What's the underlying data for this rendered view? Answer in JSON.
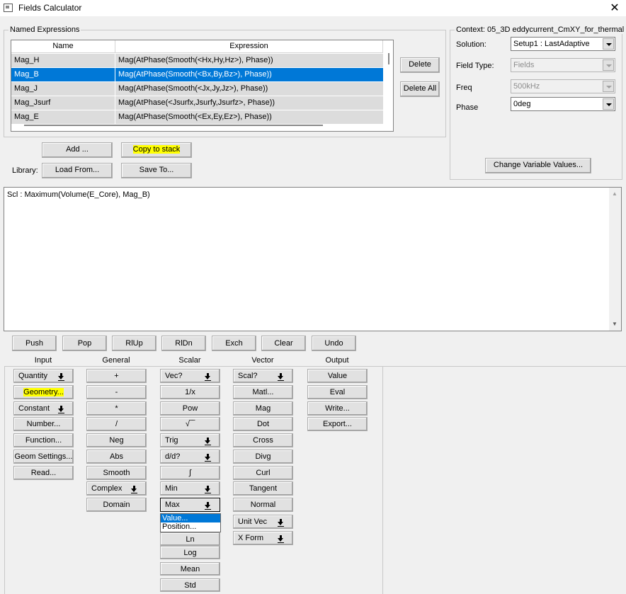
{
  "window": {
    "title": "Fields Calculator",
    "close_icon": "close-icon"
  },
  "named_expressions": {
    "label": "Named Expressions",
    "columns": [
      "Name",
      "Expression"
    ],
    "rows": [
      {
        "name": "Mag_H",
        "expression": "Mag(AtPhase(Smooth(<Hx,Hy,Hz>), Phase))"
      },
      {
        "name": "Mag_B",
        "expression": "Mag(AtPhase(Smooth(<Bx,By,Bz>), Phase))",
        "selected": true
      },
      {
        "name": "Mag_J",
        "expression": "Mag(AtPhase(Smooth(<Jx,Jy,Jz>), Phase))"
      },
      {
        "name": "Mag_Jsurf",
        "expression": "Mag(AtPhase(<Jsurfx,Jsurfy,Jsurfz>, Phase))"
      },
      {
        "name": "Mag_E",
        "expression": "Mag(AtPhase(Smooth(<Ex,Ey,Ez>), Phase))"
      }
    ],
    "delete_label": "Delete",
    "delete_all_label": "Delete All",
    "add_label": "Add ...",
    "copy_label": "Copy to stack",
    "library_label": "Library:",
    "load_label": "Load From...",
    "save_label": "Save To..."
  },
  "context": {
    "label": "Context: 05_3D eddycurrent_CmXY_for_thermal",
    "solution_label": "Solution:",
    "solution_value": "Setup1 : LastAdaptive",
    "field_type_label": "Field Type:",
    "field_type_value": "Fields",
    "freq_label": "Freq",
    "freq_value": "500kHz",
    "phase_label": "Phase",
    "phase_value": "0deg",
    "change_vars_label": "Change Variable Values..."
  },
  "stack": {
    "text": "Scl : Maximum(Volume(E_Core), Mag_B)"
  },
  "stack_buttons": [
    "Push",
    "Pop",
    "RlUp",
    "RlDn",
    "Exch",
    "Clear",
    "Undo"
  ],
  "columns": [
    {
      "title": "Input",
      "buttons": [
        {
          "label": "Quantity",
          "menu": true
        },
        {
          "label": "Geometry...",
          "highlight": true
        },
        {
          "label": "Constant",
          "menu": true
        },
        {
          "label": "Number..."
        },
        {
          "label": "Function..."
        },
        {
          "label": "Geom Settings..."
        },
        {
          "label": "Read..."
        }
      ]
    },
    {
      "title": "General",
      "buttons": [
        {
          "label": "+"
        },
        {
          "label": "-"
        },
        {
          "label": "*"
        },
        {
          "label": "/"
        },
        {
          "label": "Neg"
        },
        {
          "label": "Abs"
        },
        {
          "label": "Smooth"
        },
        {
          "label": "Complex",
          "menu": true
        },
        {
          "label": "Domain"
        }
      ]
    },
    {
      "title": "Scalar",
      "buttons": [
        {
          "label": "Vec?",
          "menu": true
        },
        {
          "label": "1/x"
        },
        {
          "label": "Pow"
        },
        {
          "label": "√‾‾"
        },
        {
          "label": "Trig",
          "menu": true
        },
        {
          "label": "d/d?",
          "menu": true
        },
        {
          "label": "∫"
        },
        {
          "label": "Min",
          "menu": true
        },
        {
          "label": "Max",
          "menu": true,
          "active": true
        },
        {
          "label": "Ln"
        },
        {
          "label": "Log"
        },
        {
          "label": "Mean"
        },
        {
          "label": "Std"
        }
      ]
    },
    {
      "title": "Vector",
      "buttons": [
        {
          "label": "Scal?",
          "menu": true
        },
        {
          "label": "Matl..."
        },
        {
          "label": "Mag"
        },
        {
          "label": "Dot"
        },
        {
          "label": "Cross"
        },
        {
          "label": "Divg"
        },
        {
          "label": "Curl"
        },
        {
          "label": "Tangent"
        },
        {
          "label": "Normal"
        },
        {
          "label": "Unit Vec",
          "menu": true
        },
        {
          "label": "X Form",
          "menu": true
        }
      ]
    },
    {
      "title": "Output",
      "buttons": [
        {
          "label": "Value"
        },
        {
          "label": "Eval"
        },
        {
          "label": "Write..."
        },
        {
          "label": "Export..."
        }
      ]
    }
  ],
  "max_menu": {
    "options": [
      "Value...",
      "Position..."
    ],
    "selected": "Value..."
  },
  "colors": {
    "selection": "#0078d7",
    "highlight": "#ffff00"
  }
}
